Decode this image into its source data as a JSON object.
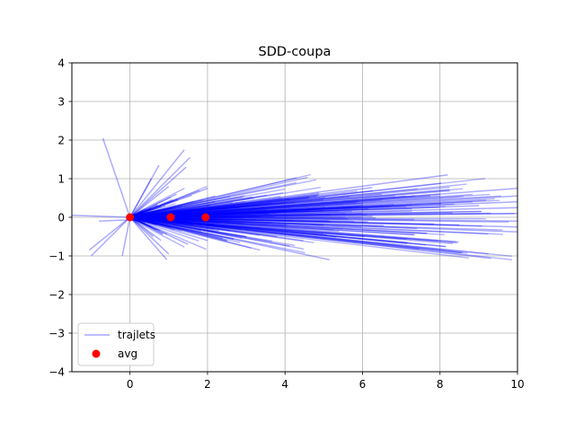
{
  "chart_data": {
    "type": "line",
    "title": "SDD-coupa",
    "xlabel": "",
    "ylabel": "",
    "xlim": [
      -1.5,
      10
    ],
    "ylim": [
      -4,
      4
    ],
    "x_ticks": [
      0,
      2,
      4,
      6,
      8,
      10
    ],
    "x_tick_labels": [
      "0",
      "2",
      "4",
      "6",
      "8",
      "10"
    ],
    "y_ticks": [
      -4,
      -3,
      -2,
      -1,
      0,
      1,
      2,
      3,
      4
    ],
    "y_tick_labels": [
      "−4",
      "−3",
      "−2",
      "−1",
      "0",
      "1",
      "2",
      "3",
      "4"
    ],
    "grid": true,
    "legend": {
      "position": "lower-left",
      "entries": [
        {
          "label": "trajlets",
          "marker": "line",
          "color": "#0000ff"
        },
        {
          "label": "avg",
          "marker": "dot",
          "color": "#ff0000"
        }
      ]
    },
    "colors": {
      "trajlets": "#0000ff",
      "avg": "#ff0000"
    },
    "series": [
      {
        "name": "avg",
        "kind": "scatter",
        "points": [
          [
            0.0,
            0.0
          ],
          [
            1.05,
            0.0
          ],
          [
            1.95,
            0.0
          ]
        ]
      },
      {
        "name": "trajlets",
        "kind": "lines",
        "notes": "A dense fan of short line segments starting near the origin; a representative sample is listed.",
        "segments": [
          [
            [
              0,
              0
            ],
            [
              -0.7,
              2.05
            ]
          ],
          [
            [
              0,
              0
            ],
            [
              -1.0,
              -1.0
            ]
          ],
          [
            [
              0,
              0
            ],
            [
              -1.05,
              -0.85
            ]
          ],
          [
            [
              0,
              0
            ],
            [
              -0.2,
              -1.0
            ]
          ],
          [
            [
              0,
              0
            ],
            [
              0.55,
              1.0
            ]
          ],
          [
            [
              0,
              0
            ],
            [
              0.75,
              1.35
            ]
          ],
          [
            [
              0,
              0
            ],
            [
              1.4,
              1.75
            ]
          ],
          [
            [
              0,
              0
            ],
            [
              1.45,
              1.3
            ]
          ],
          [
            [
              0,
              0
            ],
            [
              1.55,
              1.55
            ]
          ],
          [
            [
              0,
              0
            ],
            [
              0.95,
              -1.1
            ]
          ],
          [
            [
              0,
              0
            ],
            [
              1.0,
              -0.95
            ]
          ],
          [
            [
              0,
              0
            ],
            [
              1.5,
              -0.7
            ]
          ],
          [
            [
              0,
              0
            ],
            [
              2.4,
              -0.55
            ]
          ],
          [
            [
              0,
              0
            ],
            [
              3.0,
              -0.5
            ]
          ],
          [
            [
              0,
              0
            ],
            [
              3.8,
              -0.5
            ]
          ],
          [
            [
              0,
              0
            ],
            [
              5.15,
              -1.1
            ]
          ],
          [
            [
              0,
              0
            ],
            [
              7.35,
              -0.45
            ]
          ],
          [
            [
              0,
              0
            ],
            [
              6.25,
              0.77
            ]
          ],
          [
            [
              0,
              0
            ],
            [
              6.5,
              0.6
            ]
          ],
          [
            [
              0,
              0
            ],
            [
              8.2,
              1.1
            ]
          ],
          [
            [
              0,
              0
            ],
            [
              7.75,
              0.55
            ]
          ],
          [
            [
              0,
              0
            ],
            [
              10.0,
              0.75
            ]
          ],
          [
            [
              0,
              0
            ],
            [
              10.0,
              0.55
            ]
          ],
          [
            [
              0,
              0
            ],
            [
              10.0,
              0.4
            ]
          ],
          [
            [
              0,
              0
            ],
            [
              10.0,
              0.25
            ]
          ],
          [
            [
              0,
              0
            ],
            [
              10.0,
              0.1
            ]
          ],
          [
            [
              0,
              0
            ],
            [
              10.0,
              -0.1
            ]
          ],
          [
            [
              0,
              0
            ],
            [
              10.0,
              -0.25
            ]
          ],
          [
            [
              0,
              0
            ],
            [
              10.0,
              -0.38
            ]
          ],
          [
            [
              0,
              0
            ],
            [
              2.0,
              0.75
            ]
          ],
          [
            [
              0,
              0
            ],
            [
              2.2,
              0.55
            ]
          ],
          [
            [
              0,
              0
            ],
            [
              2.0,
              -0.6
            ]
          ],
          [
            [
              0,
              0
            ],
            [
              2.5,
              -0.6
            ]
          ],
          [
            [
              0,
              0
            ],
            [
              2.7,
              0.3
            ]
          ],
          [
            [
              0,
              0
            ],
            [
              1.2,
              0.6
            ]
          ],
          [
            [
              0,
              0
            ],
            [
              1.0,
              0.8
            ]
          ],
          [
            [
              0,
              0
            ],
            [
              0.8,
              -0.6
            ]
          ],
          [
            [
              0,
              0
            ],
            [
              0.6,
              -0.5
            ]
          ],
          [
            [
              0,
              0
            ],
            [
              4.6,
              0.5
            ]
          ],
          [
            [
              0,
              0
            ],
            [
              6.0,
              0.3
            ]
          ],
          [
            [
              0,
              0
            ],
            [
              3.5,
              0.2
            ]
          ],
          [
            [
              0,
              0
            ],
            [
              5.0,
              -0.2
            ]
          ],
          [
            [
              0,
              0
            ],
            [
              9.0,
              0.3
            ]
          ],
          [
            [
              0,
              0
            ],
            [
              8.5,
              -0.2
            ]
          ],
          [
            [
              -1.5,
              0.05
            ],
            [
              0,
              0
            ]
          ],
          [
            [
              -0.8,
              -0.1
            ],
            [
              0.3,
              -0.05
            ]
          ]
        ]
      }
    ]
  }
}
